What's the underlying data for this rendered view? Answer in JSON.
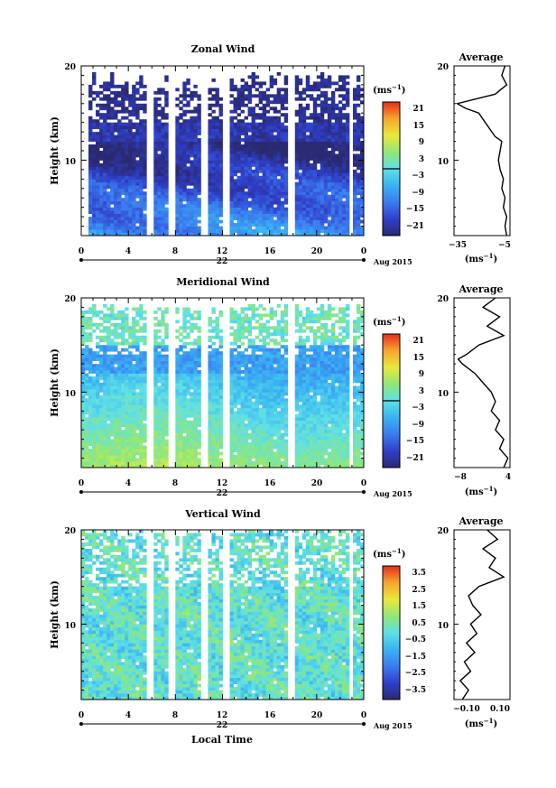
{
  "chart_data": [
    {
      "type": "heatmap",
      "title": "Zonal Wind",
      "ylabel": "Height (km)",
      "ylim": [
        2,
        20
      ],
      "y_ticks": [
        "10",
        "20"
      ],
      "xlim": [
        0,
        24
      ],
      "x_ticks": [
        "0",
        "4",
        "8",
        "12",
        "16",
        "20",
        "0"
      ],
      "date_label": "22",
      "month_label": "Aug 2015",
      "colorbar_unit": "(ms",
      "unit_exp": "−1",
      "colorbar_ticks": [
        "21",
        "15",
        "9",
        "3",
        "−3",
        "−9",
        "−15",
        "−21"
      ],
      "colorbar_range": [
        -24,
        24
      ],
      "gap_hours": [
        0.3,
        5.9,
        7.7,
        10.4,
        12.3,
        17.8,
        22.9
      ],
      "profile": {
        "title": "Average",
        "unit": "(ms",
        "x_ticks": [
          "−35",
          "−5"
        ],
        "xlim": [
          -37,
          -3
        ],
        "heights": [
          2,
          3,
          4,
          5,
          6,
          7,
          8,
          9,
          10,
          11,
          12,
          12.5,
          13,
          14,
          15,
          15.5,
          16,
          17,
          18,
          19,
          20
        ],
        "values": [
          -5,
          -6,
          -5,
          -7,
          -6,
          -8,
          -7,
          -9,
          -10,
          -9,
          -8,
          -12,
          -14,
          -18,
          -22,
          -30,
          -35,
          -12,
          -5,
          -8,
          -6
        ]
      }
    },
    {
      "type": "heatmap",
      "title": "Meridional Wind",
      "ylabel": "Height (km)",
      "ylim": [
        2,
        20
      ],
      "y_ticks": [
        "10",
        "20"
      ],
      "xlim": [
        0,
        24
      ],
      "x_ticks": [
        "0",
        "4",
        "8",
        "12",
        "16",
        "20",
        "0"
      ],
      "date_label": "22",
      "month_label": "Aug 2015",
      "colorbar_unit": "(ms",
      "unit_exp": "−1",
      "colorbar_ticks": [
        "21",
        "15",
        "9",
        "3",
        "−3",
        "−9",
        "−15",
        "−21"
      ],
      "colorbar_range": [
        -24,
        24
      ],
      "gap_hours": [
        5.8,
        7.7,
        10.4,
        12.3,
        17.8,
        22.9
      ],
      "profile": {
        "title": "Average",
        "unit": "(ms",
        "x_ticks": [
          "−8",
          "4"
        ],
        "xlim": [
          -9,
          4.5
        ],
        "heights": [
          2,
          3,
          4,
          5,
          6,
          7,
          8,
          9,
          10,
          11,
          12,
          13,
          13.5,
          14,
          15,
          16,
          17,
          18,
          19,
          20
        ],
        "values": [
          3,
          4,
          2,
          3,
          1,
          2,
          0,
          1,
          0,
          -2,
          -4,
          -7,
          -8,
          -6,
          -3,
          3,
          -1,
          2,
          -2,
          1
        ]
      }
    },
    {
      "type": "heatmap",
      "title": "Vertical Wind",
      "ylabel": "Height (km)",
      "ylim": [
        2,
        20
      ],
      "y_ticks": [
        "10",
        "20"
      ],
      "xlim": [
        0,
        24
      ],
      "x_ticks": [
        "0",
        "4",
        "8",
        "12",
        "16",
        "20",
        "0"
      ],
      "date_label": "22",
      "month_label": "Aug 2015",
      "xlabel": "Local Time",
      "colorbar_unit": "(ms",
      "unit_exp": "−1",
      "colorbar_ticks": [
        "3.5",
        "2.5",
        "1.5",
        "0.5",
        "−0.5",
        "−1.5",
        "−2.5",
        "−3.5"
      ],
      "colorbar_range": [
        -4,
        4
      ],
      "gap_hours": [
        5.8,
        7.7,
        10.4,
        12.3,
        17.8,
        22.9
      ],
      "profile": {
        "title": "Average",
        "unit": "(ms",
        "x_ticks": [
          "−0.10",
          "0.10"
        ],
        "xlim": [
          -0.12,
          0.15
        ],
        "heights": [
          2,
          3,
          4,
          5,
          6,
          7,
          8,
          9,
          10,
          11,
          12,
          13,
          14,
          15,
          16,
          17,
          18,
          19,
          20
        ],
        "values": [
          -0.08,
          -0.05,
          -0.09,
          -0.04,
          -0.07,
          -0.02,
          -0.06,
          -0.01,
          -0.04,
          0.01,
          -0.03,
          -0.05,
          0.0,
          0.12,
          0.05,
          0.08,
          0.02,
          0.09,
          0.04
        ]
      }
    }
  ]
}
